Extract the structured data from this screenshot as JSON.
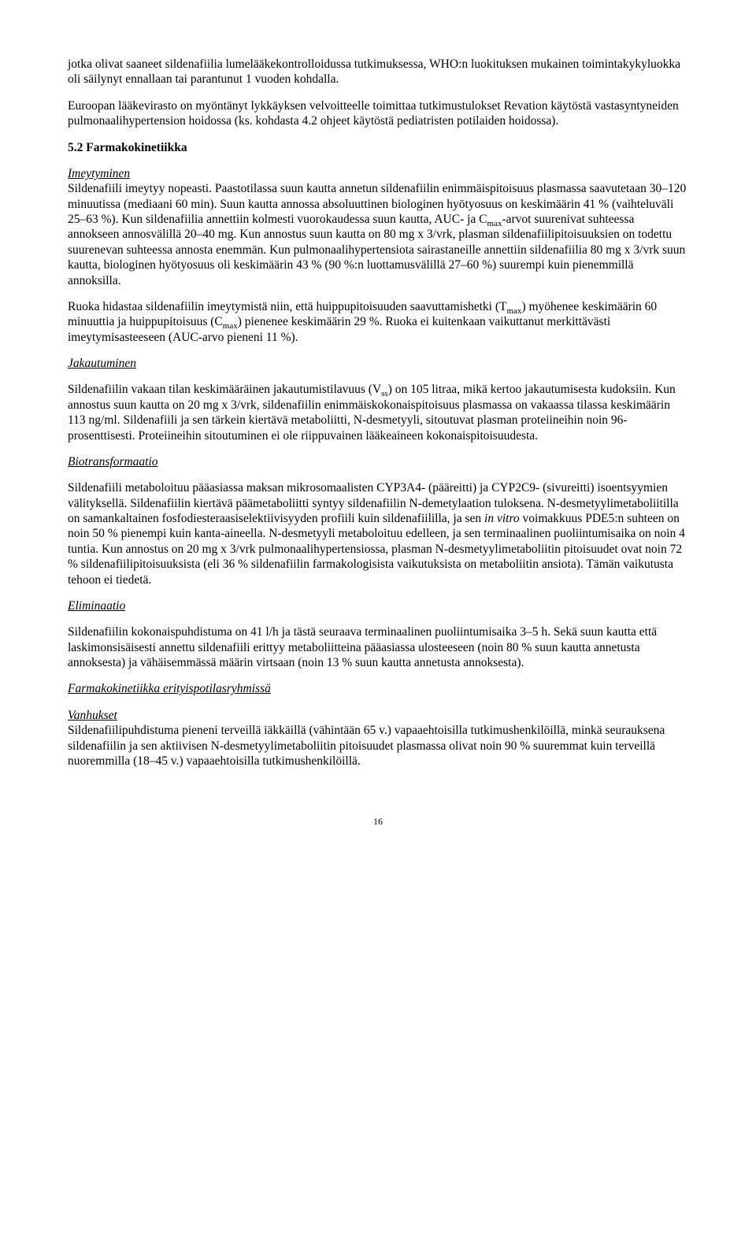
{
  "para_intro": "jotka olivat saaneet sildenafiilia lumelääkekontrolloidussa tutkimuksessa, WHO:n luokituksen mukainen toimintakykyluokka oli säilynyt ennallaan tai parantunut 1 vuoden kohdalla.",
  "para_eu": "Euroopan lääkevirasto on myöntänyt lykkäyksen velvoitteelle toimittaa tutkimustulokset Revation käytöstä vastasyntyneiden pulmonaalihypertension hoidossa (ks. kohdasta 4.2 ohjeet käytöstä pediatristen potilaiden hoidossa).",
  "heading_52": "5.2    Farmakokinetiikka",
  "sub_imeytyminen": "Imeytyminen",
  "para_imeytyminen1_a": "Sildenafiili imeytyy nopeasti. Paastotilassa suun kautta annetun sildenafiilin enimmäispitoisuus plasmassa saavutetaan 30–120 minuutissa (mediaani 60 min). Suun kautta annossa absoluuttinen biologinen hyötyosuus on keskimäärin 41 % (vaihteluväli 25–63 %). Kun sildenafiilia annettiin kolmesti vuorokaudessa suun kautta, AUC- ja C",
  "para_imeytyminen1_b": "-arvot suurenivat suhteessa annokseen annosvälillä 20–40 mg. Kun annostus suun kautta on 80 mg x 3/vrk, plasman sildenafiilipitoisuuksien on todettu suurenevan suhteessa annosta enemmän. Kun pulmonaalihypertensiota sairastaneille annettiin sildenafiilia 80 mg x 3/vrk suun kautta, biologinen hyötyosuus oli keskimäärin 43 % (90 %:n luottamusvälillä 27–60 %) suurempi kuin pienemmillä annoksilla.",
  "para_imeytyminen2_a": "Ruoka hidastaa sildenafiilin imeytymistä niin, että huippupitoisuuden saavuttamishetki (T",
  "para_imeytyminen2_b": ") myöhenee keskimäärin 60 minuuttia ja huippupitoisuus (C",
  "para_imeytyminen2_c": ") pienenee keskimäärin 29 %. Ruoka ei kuitenkaan vaikuttanut merkittävästi imeytymisasteeseen (AUC-arvo pieneni 11 %).",
  "sub_jakautuminen": "Jakautuminen",
  "para_jakautuminen_a": "Sildenafiilin vakaan tilan keskimääräinen jakautumistilavuus (V",
  "para_jakautuminen_b": ") on 105 litraa, mikä kertoo jakautumisesta kudoksiin. Kun annostus suun kautta on 20 mg x 3/vrk, sildenafiilin enimmäiskokonaispitoisuus plasmassa on vakaassa tilassa keskimäärin 113 ng/ml. Sildenafiili ja sen tärkein kiertävä metaboliitti, N-desmetyyli, sitoutuvat plasman proteiineihin noin 96-prosenttisesti. Proteiineihin sitoutuminen ei ole riippuvainen lääkeaineen kokonaispitoisuudesta.",
  "sub_biotrans": "Biotransformaatio",
  "para_biotrans_a": "Sildenafiili metaboloituu pääasiassa maksan mikrosomaalisten CYP3A4- (pääreitti) ja CYP2C9- (sivureitti) isoentsyymien välityksellä. Sildenafiilin kiertävä päämetaboliitti syntyy sildenafiilin N-demetylaation tuloksena. N-desmetyylimetaboliitilla on samankaltainen fosfodiesteraasiselektiivisyyden profiili kuin sildenafiililla, ja sen ",
  "para_biotrans_invitro": "in vitro",
  "para_biotrans_b": " voimakkuus PDE5:n suhteen on noin 50 % pienempi kuin kanta-aineella. N-desmetyyli metaboloituu edelleen, ja sen terminaalinen puoliintumisaika on noin 4 tuntia. Kun annostus on 20 mg x 3/vrk pulmonaalihypertensiossa, plasman N-desmetyylimetaboliitin pitoisuudet ovat noin 72 % sildenafiilipitoisuuksista (eli 36 % sildenafiilin farmakologisista vaikutuksista on metaboliitin ansiota). Tämän vaikutusta tehoon ei tiedetä.",
  "sub_eliminaatio": "Eliminaatio",
  "para_eliminaatio": "Sildenafiilin kokonaispuhdistuma on 41 l/h ja tästä seuraava terminaalinen puoliintumisaika 3–5 h. Sekä suun kautta että laskimonsisäisesti annettu sildenafiili erittyy metaboliitteina pääasiassa ulosteeseen (noin 80 % suun kautta annetusta annoksesta) ja vähäisemmässä määrin virtsaan (noin 13 % suun kautta annetusta annoksesta).",
  "sub_erityis": "Farmakokinetiikka erityispotilasryhmissä",
  "sub_vanhukset": "Vanhukset",
  "para_vanhukset": "Sildenafiilipuhdistuma pieneni terveillä iäkkäillä (vähintään 65 v.) vapaaehtoisilla tutkimushenkilöillä, minkä seurauksena sildenafiilin ja sen aktiivisen N-desmetyylimetaboliitin pitoisuudet plasmassa olivat noin 90 % suuremmat kuin terveillä nuoremmilla (18–45 v.) vapaaehtoisilla tutkimushenkilöillä.",
  "sub_max": "max",
  "sub_ss": "ss",
  "page_no": "16"
}
